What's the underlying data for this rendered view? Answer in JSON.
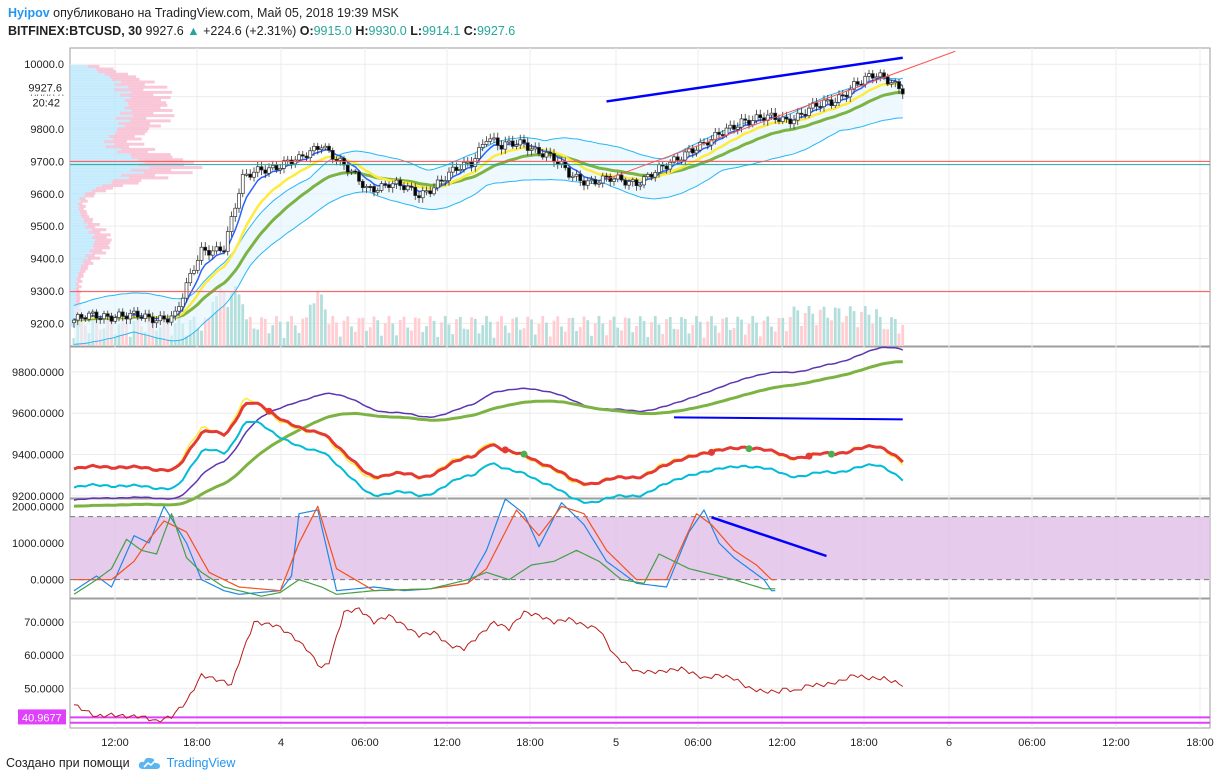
{
  "header": {
    "author": "Hyipov",
    "published": "опубликовано на TradingView.com, Май 05, 2018 19:39 MSK",
    "symbol": "BITFINEX:BTCUSD, 30",
    "last": "9927.6",
    "change": "+224.6 (+2.31%)",
    "o_label": "O:",
    "o_value": "9915.0",
    "h_label": "H:",
    "h_value": "9930.0",
    "l_label": "L:",
    "l_value": "9914.1",
    "c_label": "C:",
    "c_value": "9927.6"
  },
  "footer": {
    "created_with": "Создано при помощи",
    "brand": "TradingView"
  },
  "colors": {
    "up": "#26a69a",
    "down": "#000000",
    "brand": "#2196f3",
    "ema_fast": "#2962ff",
    "ema_mid": "#ffeb3b",
    "ema_slow": "#7cb342",
    "band": "#29b6f6",
    "trend": "#0000ff",
    "hline": "#ff5252",
    "magenta": "#e040fb"
  },
  "chart_data": [
    {
      "type": "candlestick",
      "title": "BITFINEX:BTCUSD, 30",
      "ylim": [
        9130,
        10050
      ],
      "yticks": [
        "10000.0",
        "9900.0",
        "9800.0",
        "9700.0",
        "9600.0",
        "9500.0",
        "9400.0",
        "9300.0",
        "9200.0"
      ],
      "price_label": "9927.6",
      "time_label": "20:42",
      "horizontal_levels": [
        9700,
        9690,
        9298
      ],
      "anchors": [
        [
          0,
          9210
        ],
        [
          12,
          9230
        ],
        [
          20,
          9210
        ],
        [
          27,
          9230
        ],
        [
          30,
          9310
        ],
        [
          34,
          9420
        ],
        [
          40,
          9440
        ],
        [
          45,
          9640
        ],
        [
          50,
          9680
        ],
        [
          55,
          9690
        ],
        [
          60,
          9700
        ],
        [
          66,
          9760
        ],
        [
          72,
          9680
        ],
        [
          78,
          9620
        ],
        [
          84,
          9630
        ],
        [
          92,
          9600
        ],
        [
          98,
          9640
        ],
        [
          106,
          9700
        ],
        [
          110,
          9780
        ],
        [
          114,
          9740
        ],
        [
          120,
          9760
        ],
        [
          126,
          9720
        ],
        [
          132,
          9660
        ],
        [
          138,
          9640
        ],
        [
          146,
          9640
        ],
        [
          150,
          9640
        ],
        [
          158,
          9680
        ],
        [
          164,
          9740
        ],
        [
          170,
          9760
        ],
        [
          178,
          9830
        ],
        [
          184,
          9830
        ],
        [
          190,
          9830
        ],
        [
          196,
          9860
        ],
        [
          202,
          9880
        ],
        [
          208,
          9940
        ],
        [
          214,
          9960
        ],
        [
          218,
          9950
        ],
        [
          221,
          9927.6
        ]
      ],
      "resistance_line": [
        [
          142,
          9885
        ],
        [
          221,
          10020
        ]
      ],
      "support_line": [
        [
          142,
          9645
        ],
        [
          235,
          10040
        ]
      ]
    },
    {
      "type": "line",
      "name": "moving averages panel",
      "ylim": [
        9190,
        9920
      ],
      "yticks": [
        "9800.0000",
        "9600.0000",
        "9400.0000",
        "9200.0000"
      ],
      "trend_line": [
        [
          160,
          9580
        ],
        [
          221,
          9570
        ]
      ]
    },
    {
      "type": "line",
      "name": "oscillator",
      "ylim": [
        -500,
        2200
      ],
      "yticks": [
        "2000.0000",
        "1000.0000",
        "0.0000"
      ],
      "band": [
        0,
        1720
      ],
      "series": [
        {
          "name": "blue",
          "anchors": [
            [
              0,
              -300
            ],
            [
              6,
              100
            ],
            [
              10,
              -200
            ],
            [
              16,
              1200
            ],
            [
              20,
              1000
            ],
            [
              24,
              2000
            ],
            [
              30,
              1000
            ],
            [
              34,
              0
            ],
            [
              40,
              -300
            ],
            [
              44,
              -400
            ],
            [
              55,
              -300
            ],
            [
              58,
              100
            ],
            [
              60,
              1800
            ],
            [
              65,
              1900
            ],
            [
              70,
              -300
            ],
            [
              80,
              -200
            ],
            [
              88,
              -300
            ],
            [
              95,
              -250
            ],
            [
              105,
              -100
            ],
            [
              110,
              800
            ],
            [
              115,
              2200
            ],
            [
              120,
              1800
            ],
            [
              124,
              900
            ],
            [
              130,
              2100
            ],
            [
              136,
              1500
            ],
            [
              142,
              500
            ],
            [
              150,
              -100
            ],
            [
              158,
              -200
            ],
            [
              164,
              1300
            ],
            [
              168,
              1900
            ],
            [
              172,
              1000
            ],
            [
              176,
              600
            ],
            [
              180,
              300
            ],
            [
              184,
              0
            ],
            [
              186,
              -300
            ]
          ]
        },
        {
          "name": "orange",
          "anchors": [
            [
              0,
              0
            ],
            [
              10,
              0
            ],
            [
              16,
              500
            ],
            [
              20,
              1100
            ],
            [
              24,
              1600
            ],
            [
              30,
              1300
            ],
            [
              36,
              200
            ],
            [
              44,
              -200
            ],
            [
              55,
              -300
            ],
            [
              60,
              1000
            ],
            [
              65,
              2000
            ],
            [
              70,
              300
            ],
            [
              80,
              -300
            ],
            [
              95,
              -250
            ],
            [
              105,
              -100
            ],
            [
              110,
              300
            ],
            [
              118,
              1900
            ],
            [
              124,
              1200
            ],
            [
              130,
              2000
            ],
            [
              136,
              1800
            ],
            [
              142,
              800
            ],
            [
              150,
              0
            ],
            [
              158,
              0
            ],
            [
              166,
              1800
            ],
            [
              170,
              1500
            ],
            [
              176,
              800
            ],
            [
              182,
              400
            ],
            [
              186,
              0
            ]
          ]
        },
        {
          "name": "green",
          "anchors": [
            [
              0,
              -400
            ],
            [
              6,
              0
            ],
            [
              10,
              300
            ],
            [
              14,
              1100
            ],
            [
              18,
              800
            ],
            [
              22,
              700
            ],
            [
              26,
              1800
            ],
            [
              30,
              600
            ],
            [
              34,
              200
            ],
            [
              40,
              -200
            ],
            [
              50,
              -450
            ],
            [
              55,
              -350
            ],
            [
              60,
              0
            ],
            [
              66,
              -200
            ],
            [
              70,
              -400
            ],
            [
              80,
              -300
            ],
            [
              95,
              -250
            ],
            [
              105,
              0
            ],
            [
              110,
              200
            ],
            [
              116,
              0
            ],
            [
              122,
              400
            ],
            [
              128,
              500
            ],
            [
              134,
              800
            ],
            [
              140,
              500
            ],
            [
              146,
              0
            ],
            [
              152,
              -100
            ],
            [
              156,
              700
            ],
            [
              160,
              500
            ],
            [
              164,
              300
            ],
            [
              168,
              200
            ],
            [
              176,
              0
            ],
            [
              184,
              -250
            ]
          ]
        }
      ],
      "trend_line": [
        [
          170,
          1700
        ],
        [
          190,
          100
        ]
      ]
    },
    {
      "type": "line",
      "name": "indicator",
      "ylim": [
        38,
        77
      ],
      "yticks": [
        "70.0000",
        "60.0000",
        "50.0000"
      ],
      "level_label": "40.9677",
      "levels": [
        41.2,
        39.6
      ],
      "series": [
        {
          "name": "value",
          "anchors": [
            [
              0,
              45
            ],
            [
              6,
              41.5
            ],
            [
              10,
              42
            ],
            [
              14,
              41.5
            ],
            [
              18,
              41.5
            ],
            [
              22,
              40
            ],
            [
              26,
              41.5
            ],
            [
              30,
              46
            ],
            [
              34,
              54
            ],
            [
              40,
              52
            ],
            [
              42,
              51
            ],
            [
              44,
              58
            ],
            [
              48,
              70
            ],
            [
              54,
              69
            ],
            [
              58,
              66
            ],
            [
              62,
              62
            ],
            [
              66,
              56
            ],
            [
              68,
              58
            ],
            [
              72,
              73
            ],
            [
              76,
              74
            ],
            [
              80,
              70
            ],
            [
              84,
              72
            ],
            [
              88,
              69
            ],
            [
              92,
              66
            ],
            [
              96,
              67
            ],
            [
              100,
              63
            ],
            [
              104,
              62
            ],
            [
              108,
              66
            ],
            [
              112,
              70
            ],
            [
              116,
              68
            ],
            [
              120,
              73
            ],
            [
              124,
              72
            ],
            [
              128,
              70
            ],
            [
              132,
              71
            ],
            [
              136,
              69
            ],
            [
              140,
              68
            ],
            [
              144,
              60
            ],
            [
              150,
              55
            ],
            [
              156,
              55
            ],
            [
              162,
              56
            ],
            [
              168,
              53
            ],
            [
              172,
              54
            ],
            [
              176,
              53
            ],
            [
              180,
              50
            ],
            [
              184,
              49
            ],
            [
              188,
              49
            ],
            [
              190,
              50
            ],
            [
              192,
              49
            ],
            [
              196,
              51
            ],
            [
              200,
              51
            ],
            [
              204,
              52
            ],
            [
              208,
              54
            ],
            [
              212,
              53
            ],
            [
              216,
              53
            ],
            [
              221,
              51
            ]
          ]
        }
      ]
    }
  ],
  "x_axis": {
    "labels": [
      "12:00",
      "18:00",
      "4",
      "06:00",
      "12:00",
      "18:00",
      "5",
      "06:00",
      "12:00",
      "18:00",
      "6",
      "06:00",
      "12:00",
      "18:00"
    ]
  }
}
